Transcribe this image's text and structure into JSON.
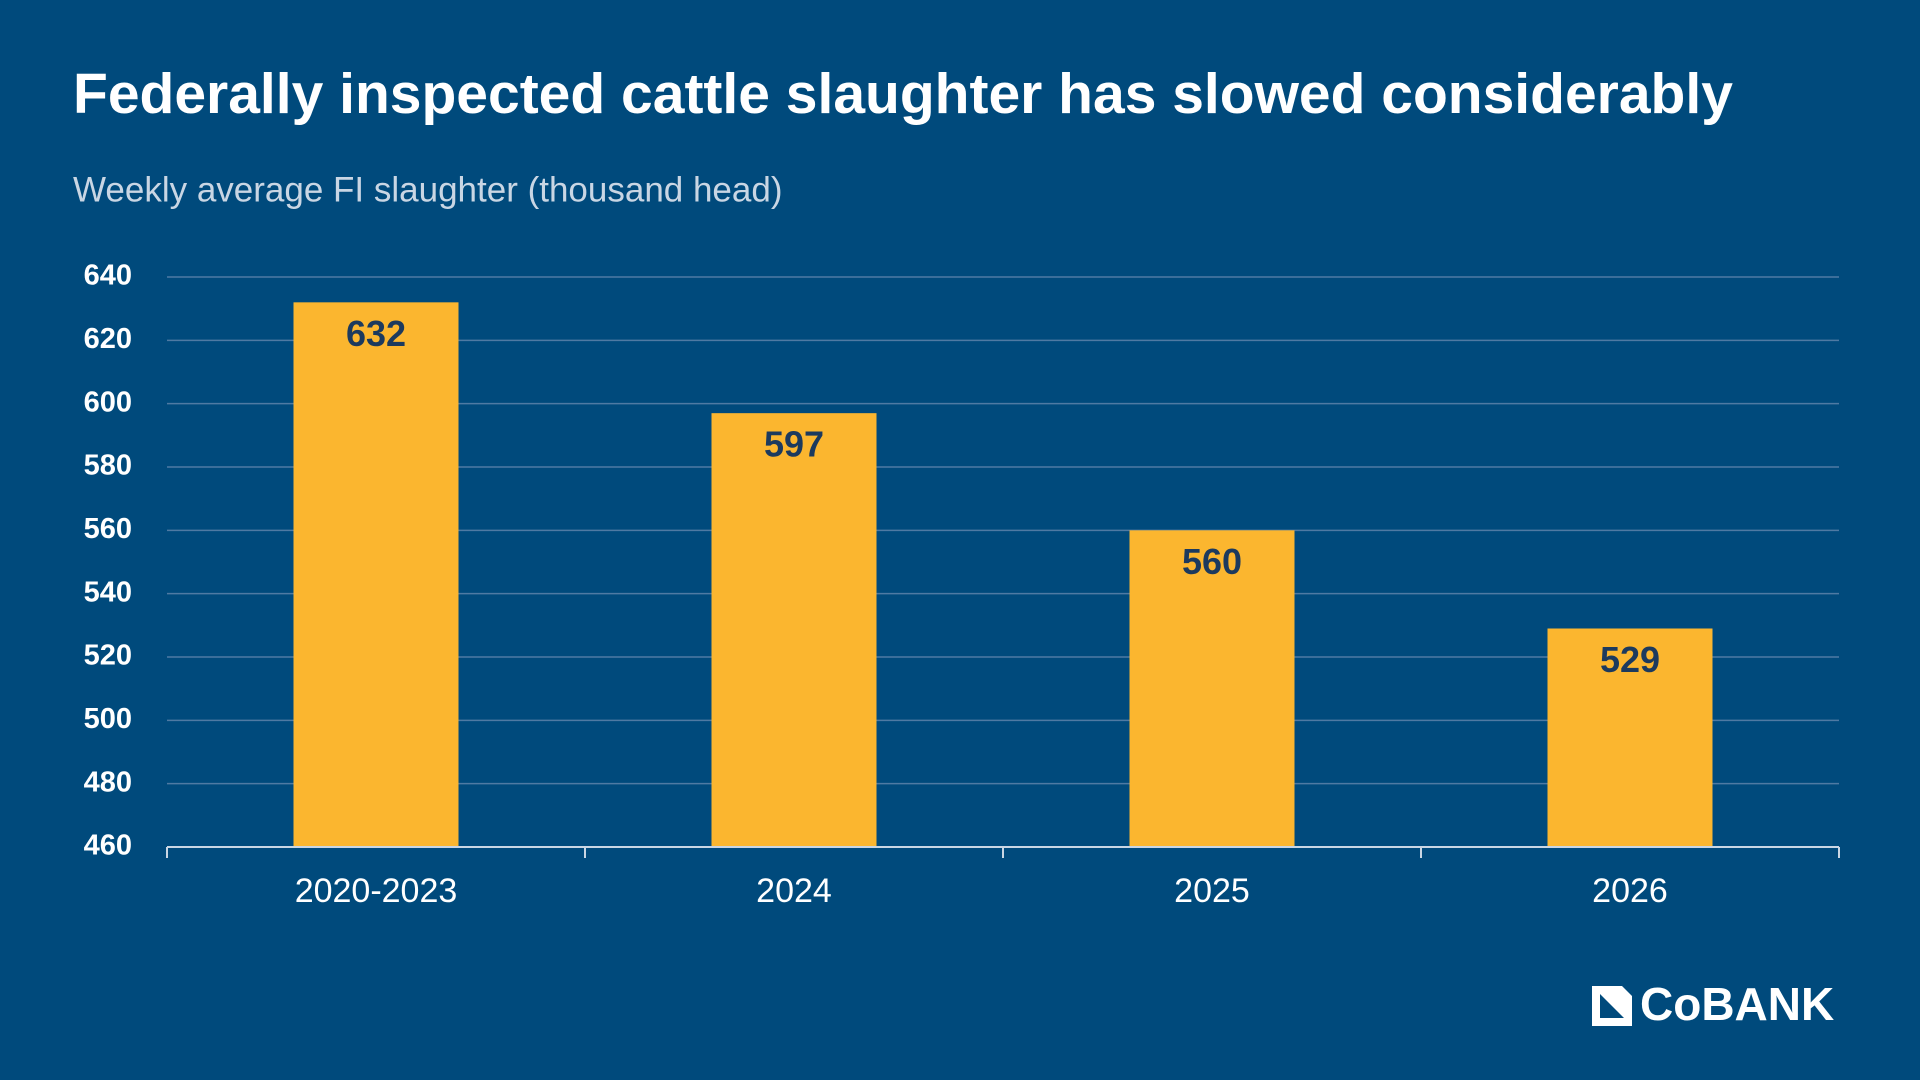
{
  "chart_data": {
    "type": "bar",
    "title": "Federally inspected cattle slaughter has slowed considerably",
    "subtitle": "Weekly average FI slaughter (thousand head)",
    "categories": [
      "2020-2023",
      "2024",
      "2025",
      "2026"
    ],
    "values": [
      632,
      597,
      560,
      529
    ],
    "color": "#fbb62f",
    "ylim": [
      460,
      640
    ],
    "yticks": [
      460,
      480,
      500,
      520,
      540,
      560,
      580,
      600,
      620,
      640
    ],
    "grid": true,
    "logo": "CoBANK"
  }
}
